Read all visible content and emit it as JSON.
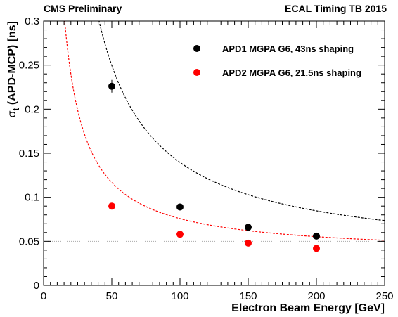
{
  "header": {
    "left": "CMS Preliminary",
    "right": "ECAL Timing TB 2015"
  },
  "chart_data": {
    "type": "scatter",
    "xlabel": "Electron Beam Energy [GeV]",
    "ylabel_main": "σ",
    "ylabel_sub": "t",
    "ylabel_rest": " (APD-MCP) [ns]",
    "xlim": [
      0,
      250
    ],
    "ylim": [
      0,
      0.3
    ],
    "xticks": [
      0,
      50,
      100,
      150,
      200,
      250
    ],
    "xtick_labels": [
      "0",
      "50",
      "100",
      "150",
      "200",
      "250"
    ],
    "yticks": [
      0,
      0.05,
      0.1,
      0.15,
      0.2,
      0.25,
      0.3
    ],
    "ytick_labels": [
      "0",
      "0.05",
      "0.1",
      "0.15",
      "0.2",
      "0.25",
      "0.3"
    ],
    "grid": false,
    "legend_position": "top-right",
    "reference_line": {
      "y": 0.05,
      "style": "dotted",
      "color": "#aaaaaa"
    },
    "series": [
      {
        "name": "APD1 MGPA G6, 43ns shaping",
        "color": "#000000",
        "x": [
          50,
          100,
          150,
          200
        ],
        "y": [
          0.226,
          0.089,
          0.066,
          0.056
        ],
        "fit": {
          "a": 11.0,
          "c": 0.0296
        }
      },
      {
        "name": "APD2 MGPA G6, 21.5ns shaping",
        "color": "#ff0000",
        "x": [
          50,
          100,
          150,
          200
        ],
        "y": [
          0.09,
          0.058,
          0.048,
          0.042
        ],
        "fit": {
          "a": 4.1,
          "c": 0.0348
        }
      }
    ]
  }
}
